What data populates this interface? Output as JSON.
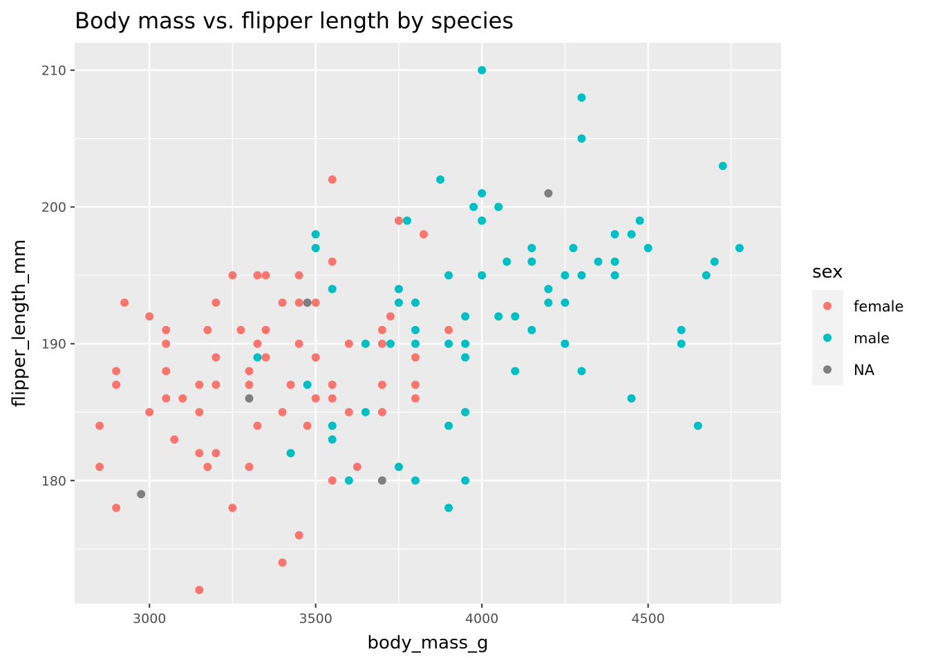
{
  "chart_data": {
    "type": "scatter",
    "title": "Body mass vs. flipper length by species",
    "xlabel": "body_mass_g",
    "ylabel": "flipper_length_mm",
    "xlim": [
      2775,
      4900
    ],
    "ylim": [
      171,
      212
    ],
    "x_ticks": [
      3000,
      3500,
      4000,
      4500
    ],
    "y_ticks": [
      180,
      190,
      200,
      210
    ],
    "grid": true,
    "legend_title": "sex",
    "legend_position": "right",
    "series": [
      {
        "name": "female",
        "color": "#F8766D",
        "points": [
          [
            2850,
            184
          ],
          [
            2850,
            181
          ],
          [
            2900,
            188
          ],
          [
            2900,
            187
          ],
          [
            2900,
            178
          ],
          [
            2925,
            193
          ],
          [
            3000,
            192
          ],
          [
            3000,
            185
          ],
          [
            3050,
            191
          ],
          [
            3050,
            190
          ],
          [
            3050,
            188
          ],
          [
            3050,
            186
          ],
          [
            3075,
            183
          ],
          [
            3100,
            186
          ],
          [
            3150,
            187
          ],
          [
            3150,
            185
          ],
          [
            3150,
            182
          ],
          [
            3150,
            172
          ],
          [
            3175,
            191
          ],
          [
            3175,
            181
          ],
          [
            3200,
            193
          ],
          [
            3200,
            189
          ],
          [
            3200,
            187
          ],
          [
            3200,
            182
          ],
          [
            3250,
            195
          ],
          [
            3250,
            178
          ],
          [
            3275,
            191
          ],
          [
            3300,
            188
          ],
          [
            3300,
            187
          ],
          [
            3300,
            181
          ],
          [
            3325,
            195
          ],
          [
            3325,
            190
          ],
          [
            3325,
            184
          ],
          [
            3350,
            195
          ],
          [
            3350,
            191
          ],
          [
            3350,
            189
          ],
          [
            3400,
            193
          ],
          [
            3400,
            185
          ],
          [
            3400,
            174
          ],
          [
            3425,
            187
          ],
          [
            3450,
            195
          ],
          [
            3450,
            193
          ],
          [
            3450,
            190
          ],
          [
            3450,
            176
          ],
          [
            3475,
            184
          ],
          [
            3500,
            193
          ],
          [
            3500,
            189
          ],
          [
            3500,
            186
          ],
          [
            3550,
            202
          ],
          [
            3550,
            196
          ],
          [
            3550,
            187
          ],
          [
            3550,
            186
          ],
          [
            3550,
            180
          ],
          [
            3600,
            190
          ],
          [
            3600,
            185
          ],
          [
            3625,
            181
          ],
          [
            3700,
            191
          ],
          [
            3700,
            190
          ],
          [
            3700,
            187
          ],
          [
            3700,
            185
          ],
          [
            3725,
            192
          ],
          [
            3750,
            199
          ],
          [
            3800,
            189
          ],
          [
            3800,
            187
          ],
          [
            3800,
            186
          ],
          [
            3825,
            198
          ],
          [
            3900,
            191
          ]
        ]
      },
      {
        "name": "male",
        "color": "#00BFC4",
        "points": [
          [
            3325,
            189
          ],
          [
            3425,
            182
          ],
          [
            3475,
            187
          ],
          [
            3500,
            198
          ],
          [
            3500,
            197
          ],
          [
            3550,
            194
          ],
          [
            3550,
            184
          ],
          [
            3550,
            183
          ],
          [
            3600,
            180
          ],
          [
            3650,
            190
          ],
          [
            3650,
            185
          ],
          [
            3725,
            190
          ],
          [
            3750,
            194
          ],
          [
            3750,
            193
          ],
          [
            3750,
            181
          ],
          [
            3775,
            199
          ],
          [
            3800,
            193
          ],
          [
            3800,
            191
          ],
          [
            3800,
            190
          ],
          [
            3800,
            180
          ],
          [
            3875,
            202
          ],
          [
            3900,
            195
          ],
          [
            3900,
            190
          ],
          [
            3900,
            184
          ],
          [
            3900,
            178
          ],
          [
            3950,
            192
          ],
          [
            3950,
            190
          ],
          [
            3950,
            189
          ],
          [
            3950,
            185
          ],
          [
            3950,
            180
          ],
          [
            3975,
            200
          ],
          [
            4000,
            210
          ],
          [
            4000,
            201
          ],
          [
            4000,
            199
          ],
          [
            4000,
            195
          ],
          [
            4050,
            200
          ],
          [
            4050,
            192
          ],
          [
            4075,
            196
          ],
          [
            4100,
            192
          ],
          [
            4100,
            188
          ],
          [
            4150,
            197
          ],
          [
            4150,
            196
          ],
          [
            4150,
            191
          ],
          [
            4200,
            194
          ],
          [
            4200,
            193
          ],
          [
            4250,
            195
          ],
          [
            4250,
            193
          ],
          [
            4250,
            190
          ],
          [
            4275,
            197
          ],
          [
            4300,
            208
          ],
          [
            4300,
            205
          ],
          [
            4300,
            195
          ],
          [
            4300,
            188
          ],
          [
            4350,
            196
          ],
          [
            4400,
            198
          ],
          [
            4400,
            196
          ],
          [
            4400,
            195
          ],
          [
            4450,
            198
          ],
          [
            4450,
            186
          ],
          [
            4475,
            199
          ],
          [
            4500,
            197
          ],
          [
            4600,
            191
          ],
          [
            4600,
            190
          ],
          [
            4650,
            184
          ],
          [
            4675,
            195
          ],
          [
            4700,
            196
          ],
          [
            4725,
            203
          ],
          [
            4775,
            197
          ]
        ]
      },
      {
        "name": "NA",
        "color": "#7F7F7F",
        "points": [
          [
            2975,
            179
          ],
          [
            3300,
            186
          ],
          [
            3475,
            193
          ],
          [
            3700,
            180
          ],
          [
            4200,
            201
          ]
        ]
      }
    ]
  }
}
